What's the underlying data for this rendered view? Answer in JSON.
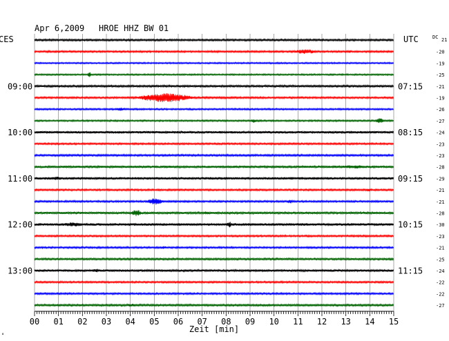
{
  "header": {
    "date": "Apr 6,2009",
    "station": "HROE HHZ BW 01",
    "left_zone": "CES",
    "right_zone": "UTC",
    "dc_label": "DC"
  },
  "footer": {
    "xlabel": "Zeit [min]",
    "corner_mark": "°"
  },
  "colors": {
    "cycle": [
      "#000000",
      "#ff0000",
      "#0000ff",
      "#006400"
    ],
    "grid": "#707070"
  },
  "chart_data": {
    "type": "line",
    "title": "Apr 6,2009   HROE HHZ BW 01",
    "xlabel": "Zeit [min]",
    "ylabel": "",
    "xlim": [
      0,
      15
    ],
    "x_ticks": [
      "00",
      "01",
      "02",
      "03",
      "04",
      "05",
      "06",
      "07",
      "08",
      "09",
      "10",
      "11",
      "12",
      "13",
      "14",
      "15"
    ],
    "grid": true,
    "trace_count": 24,
    "minutes_per_trace": 15,
    "left_time_labels": [
      {
        "trace": 4,
        "label": "09:00"
      },
      {
        "trace": 8,
        "label": "10:00"
      },
      {
        "trace": 12,
        "label": "11:00"
      },
      {
        "trace": 16,
        "label": "12:00"
      },
      {
        "trace": 20,
        "label": "13:00"
      }
    ],
    "right_time_labels": [
      {
        "trace": 0,
        "label": "UTC"
      },
      {
        "trace": 4,
        "label": "07:15"
      },
      {
        "trace": 8,
        "label": "08:15"
      },
      {
        "trace": 12,
        "label": "09:15"
      },
      {
        "trace": 16,
        "label": "10:15"
      },
      {
        "trace": 20,
        "label": "11:15"
      }
    ],
    "dc_offsets": [
      "21",
      "-20",
      "-19",
      "-25",
      "-21",
      "-19",
      "-26",
      "-27",
      "-24",
      "-23",
      "-23",
      "-28",
      "-29",
      "-21",
      "-21",
      "-28",
      "-30",
      "-23",
      "-21",
      "-25",
      "-24",
      "-22",
      "-22",
      "-27"
    ],
    "traces": [
      {
        "index": 0,
        "color": "black",
        "noise": 1.3,
        "events": []
      },
      {
        "index": 1,
        "color": "red",
        "noise": 1.2,
        "events": [
          {
            "start": 10.7,
            "end": 12.6,
            "amp": 3.5
          },
          {
            "start": 13.1,
            "end": 13.3,
            "amp": 2.5
          }
        ]
      },
      {
        "index": 2,
        "color": "blue",
        "noise": 1.0,
        "events": []
      },
      {
        "index": 3,
        "color": "green",
        "noise": 1.0,
        "events": [
          {
            "start": 2.2,
            "end": 2.5,
            "amp": 4
          }
        ]
      },
      {
        "index": 4,
        "color": "black",
        "noise": 1.4,
        "events": []
      },
      {
        "index": 5,
        "color": "red",
        "noise": 1.2,
        "events": [
          {
            "start": 4.1,
            "end": 8.5,
            "amp": 6.5
          }
        ]
      },
      {
        "index": 6,
        "color": "blue",
        "noise": 1.1,
        "events": [
          {
            "start": 3.3,
            "end": 4.2,
            "amp": 2.5
          }
        ]
      },
      {
        "index": 7,
        "color": "green",
        "noise": 1.1,
        "events": [
          {
            "start": 9.0,
            "end": 9.5,
            "amp": 3
          },
          {
            "start": 14.2,
            "end": 14.9,
            "amp": 4
          }
        ]
      },
      {
        "index": 8,
        "color": "black",
        "noise": 1.7,
        "events": []
      },
      {
        "index": 9,
        "color": "red",
        "noise": 1.2,
        "events": []
      },
      {
        "index": 10,
        "color": "blue",
        "noise": 1.3,
        "events": []
      },
      {
        "index": 11,
        "color": "green",
        "noise": 1.6,
        "events": [
          {
            "start": 12.6,
            "end": 15.0,
            "amp": 2.5
          }
        ]
      },
      {
        "index": 12,
        "color": "black",
        "noise": 1.8,
        "events": [
          {
            "start": 0.5,
            "end": 1.8,
            "amp": 2.5
          }
        ]
      },
      {
        "index": 13,
        "color": "red",
        "noise": 1.2,
        "events": [
          {
            "start": 13.8,
            "end": 14.3,
            "amp": 2.5
          }
        ]
      },
      {
        "index": 14,
        "color": "blue",
        "noise": 1.2,
        "events": [
          {
            "start": 4.6,
            "end": 6.0,
            "amp": 5
          },
          {
            "start": 10.5,
            "end": 11.0,
            "amp": 3
          }
        ]
      },
      {
        "index": 15,
        "color": "green",
        "noise": 1.5,
        "events": [
          {
            "start": 4.0,
            "end": 4.8,
            "amp": 5
          },
          {
            "start": 7.0,
            "end": 7.6,
            "amp": 2.5
          }
        ]
      },
      {
        "index": 16,
        "color": "black",
        "noise": 1.8,
        "events": [
          {
            "start": 1.0,
            "end": 3.0,
            "amp": 3
          },
          {
            "start": 8.0,
            "end": 8.4,
            "amp": 4.5
          }
        ]
      },
      {
        "index": 17,
        "color": "red",
        "noise": 1.2,
        "events": []
      },
      {
        "index": 18,
        "color": "blue",
        "noise": 1.2,
        "events": [
          {
            "start": 5.2,
            "end": 5.8,
            "amp": 2.5
          }
        ]
      },
      {
        "index": 19,
        "color": "green",
        "noise": 1.3,
        "events": []
      },
      {
        "index": 20,
        "color": "black",
        "noise": 1.6,
        "events": [
          {
            "start": 2.3,
            "end": 3.2,
            "amp": 2.5
          }
        ]
      },
      {
        "index": 21,
        "color": "red",
        "noise": 1.2,
        "events": []
      },
      {
        "index": 22,
        "color": "blue",
        "noise": 1.2,
        "events": []
      },
      {
        "index": 23,
        "color": "green",
        "noise": 1.4,
        "events": [
          {
            "start": 3.8,
            "end": 4.6,
            "amp": 2.5
          }
        ]
      }
    ]
  }
}
